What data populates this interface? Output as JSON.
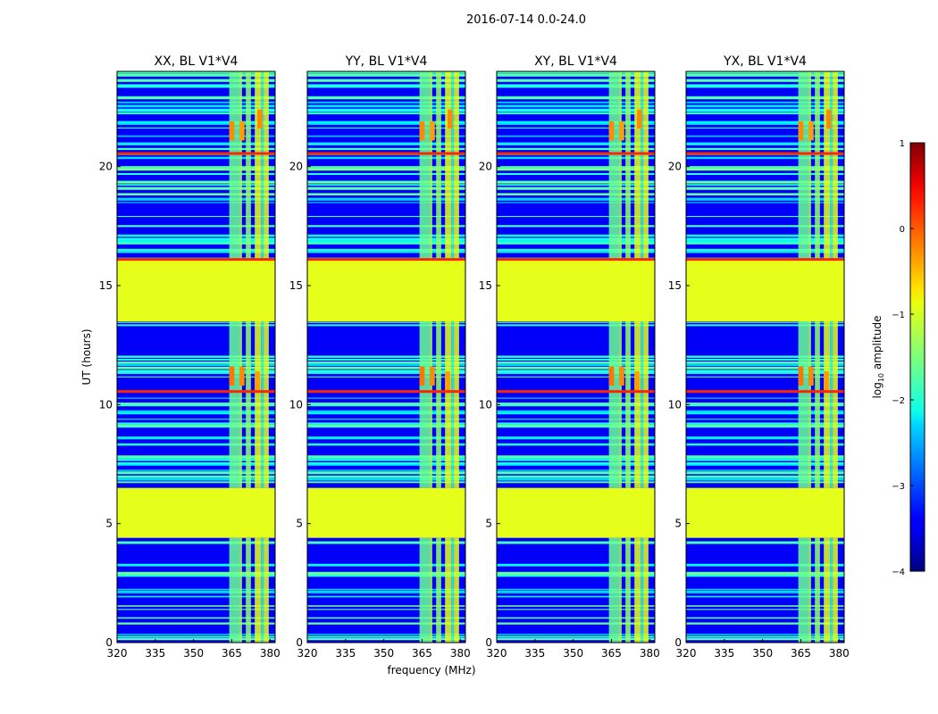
{
  "chart_data": {
    "type": "heatmap",
    "suptitle": "2016-07-14 0.0-24.0",
    "xlabel": "frequency (MHz)",
    "ylabel": "UT (hours)",
    "xlim": [
      320,
      382
    ],
    "ylim": [
      0,
      24
    ],
    "xticks": [
      320,
      335,
      350,
      365,
      380
    ],
    "yticks": [
      0,
      5,
      10,
      15,
      20
    ],
    "panels": [
      {
        "title": "XX, BL V1*V4"
      },
      {
        "title": "YY, BL V1*V4"
      },
      {
        "title": "XY, BL V1*V4"
      },
      {
        "title": "YX, BL V1*V4"
      }
    ],
    "flagged_bands_hours": [
      [
        4.4,
        6.5
      ],
      [
        13.5,
        16.1
      ]
    ],
    "flag_value_log10": -1.0,
    "rfi_band_lines_hours": [
      10.55,
      16.1,
      20.55
    ],
    "rfi_channels_mhz": [
      {
        "from": 364,
        "to": 368,
        "level": -1.6
      },
      {
        "from": 368,
        "to": 369,
        "level": -1.3
      },
      {
        "from": 370.5,
        "to": 372.5,
        "level": -1.4
      },
      {
        "from": 374,
        "to": 376.5,
        "level": -1.0
      },
      {
        "from": 376.5,
        "to": 377.5,
        "level": -1.9
      },
      {
        "from": 377.5,
        "to": 379.5,
        "level": -1.0
      }
    ],
    "hot_spots": [
      {
        "mhz": 365,
        "hours": 11.2,
        "level": -0.2
      },
      {
        "mhz": 369,
        "hours": 11.2,
        "level": -0.3
      },
      {
        "mhz": 375,
        "hours": 11.0,
        "level": -0.4
      },
      {
        "mhz": 365,
        "hours": 21.5,
        "level": -0.3
      },
      {
        "mhz": 369,
        "hours": 21.5,
        "level": -0.4
      },
      {
        "mhz": 376,
        "hours": 22.0,
        "level": -0.3
      }
    ],
    "background_level_log10": -3.4,
    "colorbar": {
      "label": "log10 amplitude",
      "label_prefix": "log",
      "label_sub": "10",
      "label_suffix": " amplitude",
      "min": -4,
      "max": 1,
      "ticks": [
        "1",
        "0",
        "−1",
        "−2",
        "−3",
        "−4"
      ],
      "tick_values": [
        1,
        0,
        -1,
        -2,
        -3,
        -4
      ],
      "colormap": "jet"
    }
  }
}
